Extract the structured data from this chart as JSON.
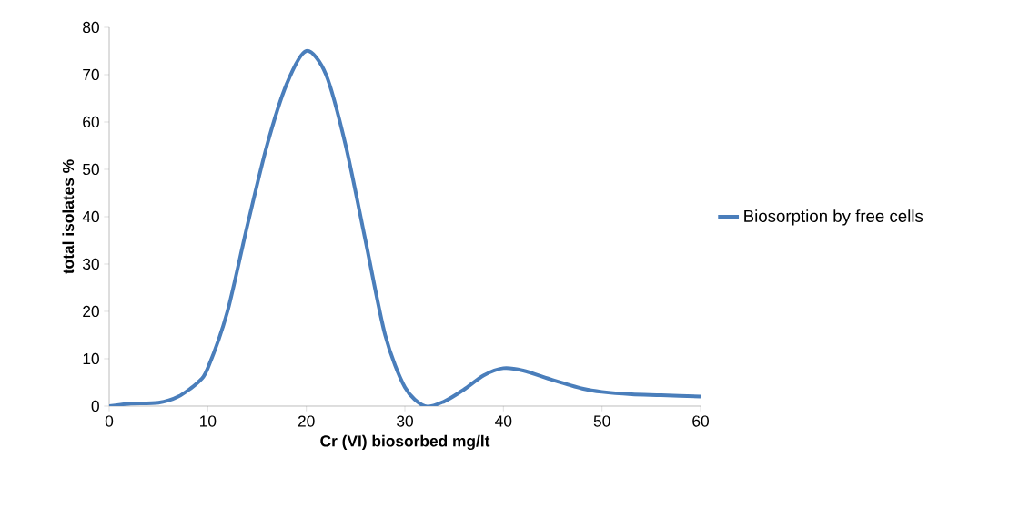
{
  "chart_data": {
    "type": "line",
    "xlabel": "Cr (VI) biosorbed mg/lt",
    "ylabel": "total isolates %",
    "x": [
      0,
      2,
      5,
      7,
      9,
      10,
      12,
      14,
      16,
      18,
      20,
      22,
      24,
      26,
      28,
      30,
      32,
      34,
      36,
      38,
      40,
      42,
      45,
      48,
      50,
      53,
      56,
      60
    ],
    "series": [
      {
        "name": "Biosorption by free cells",
        "color": "#4a7ebb",
        "values": [
          0,
          0.5,
          0.7,
          2,
          5,
          8,
          20,
          38,
          55,
          68,
          75,
          70,
          55,
          35,
          15,
          4,
          0,
          1,
          3.5,
          6.5,
          8,
          7.5,
          5.5,
          3.7,
          3,
          2.5,
          2.3,
          2
        ]
      }
    ],
    "xlim": [
      0,
      60
    ],
    "xticks": [
      0,
      10,
      20,
      30,
      40,
      50,
      60
    ],
    "ylim": [
      0,
      80
    ],
    "yticks": [
      0,
      10,
      20,
      30,
      40,
      50,
      60,
      70,
      80
    ],
    "grid": false,
    "legend": "right",
    "marker": "none",
    "line_style": "solid"
  }
}
